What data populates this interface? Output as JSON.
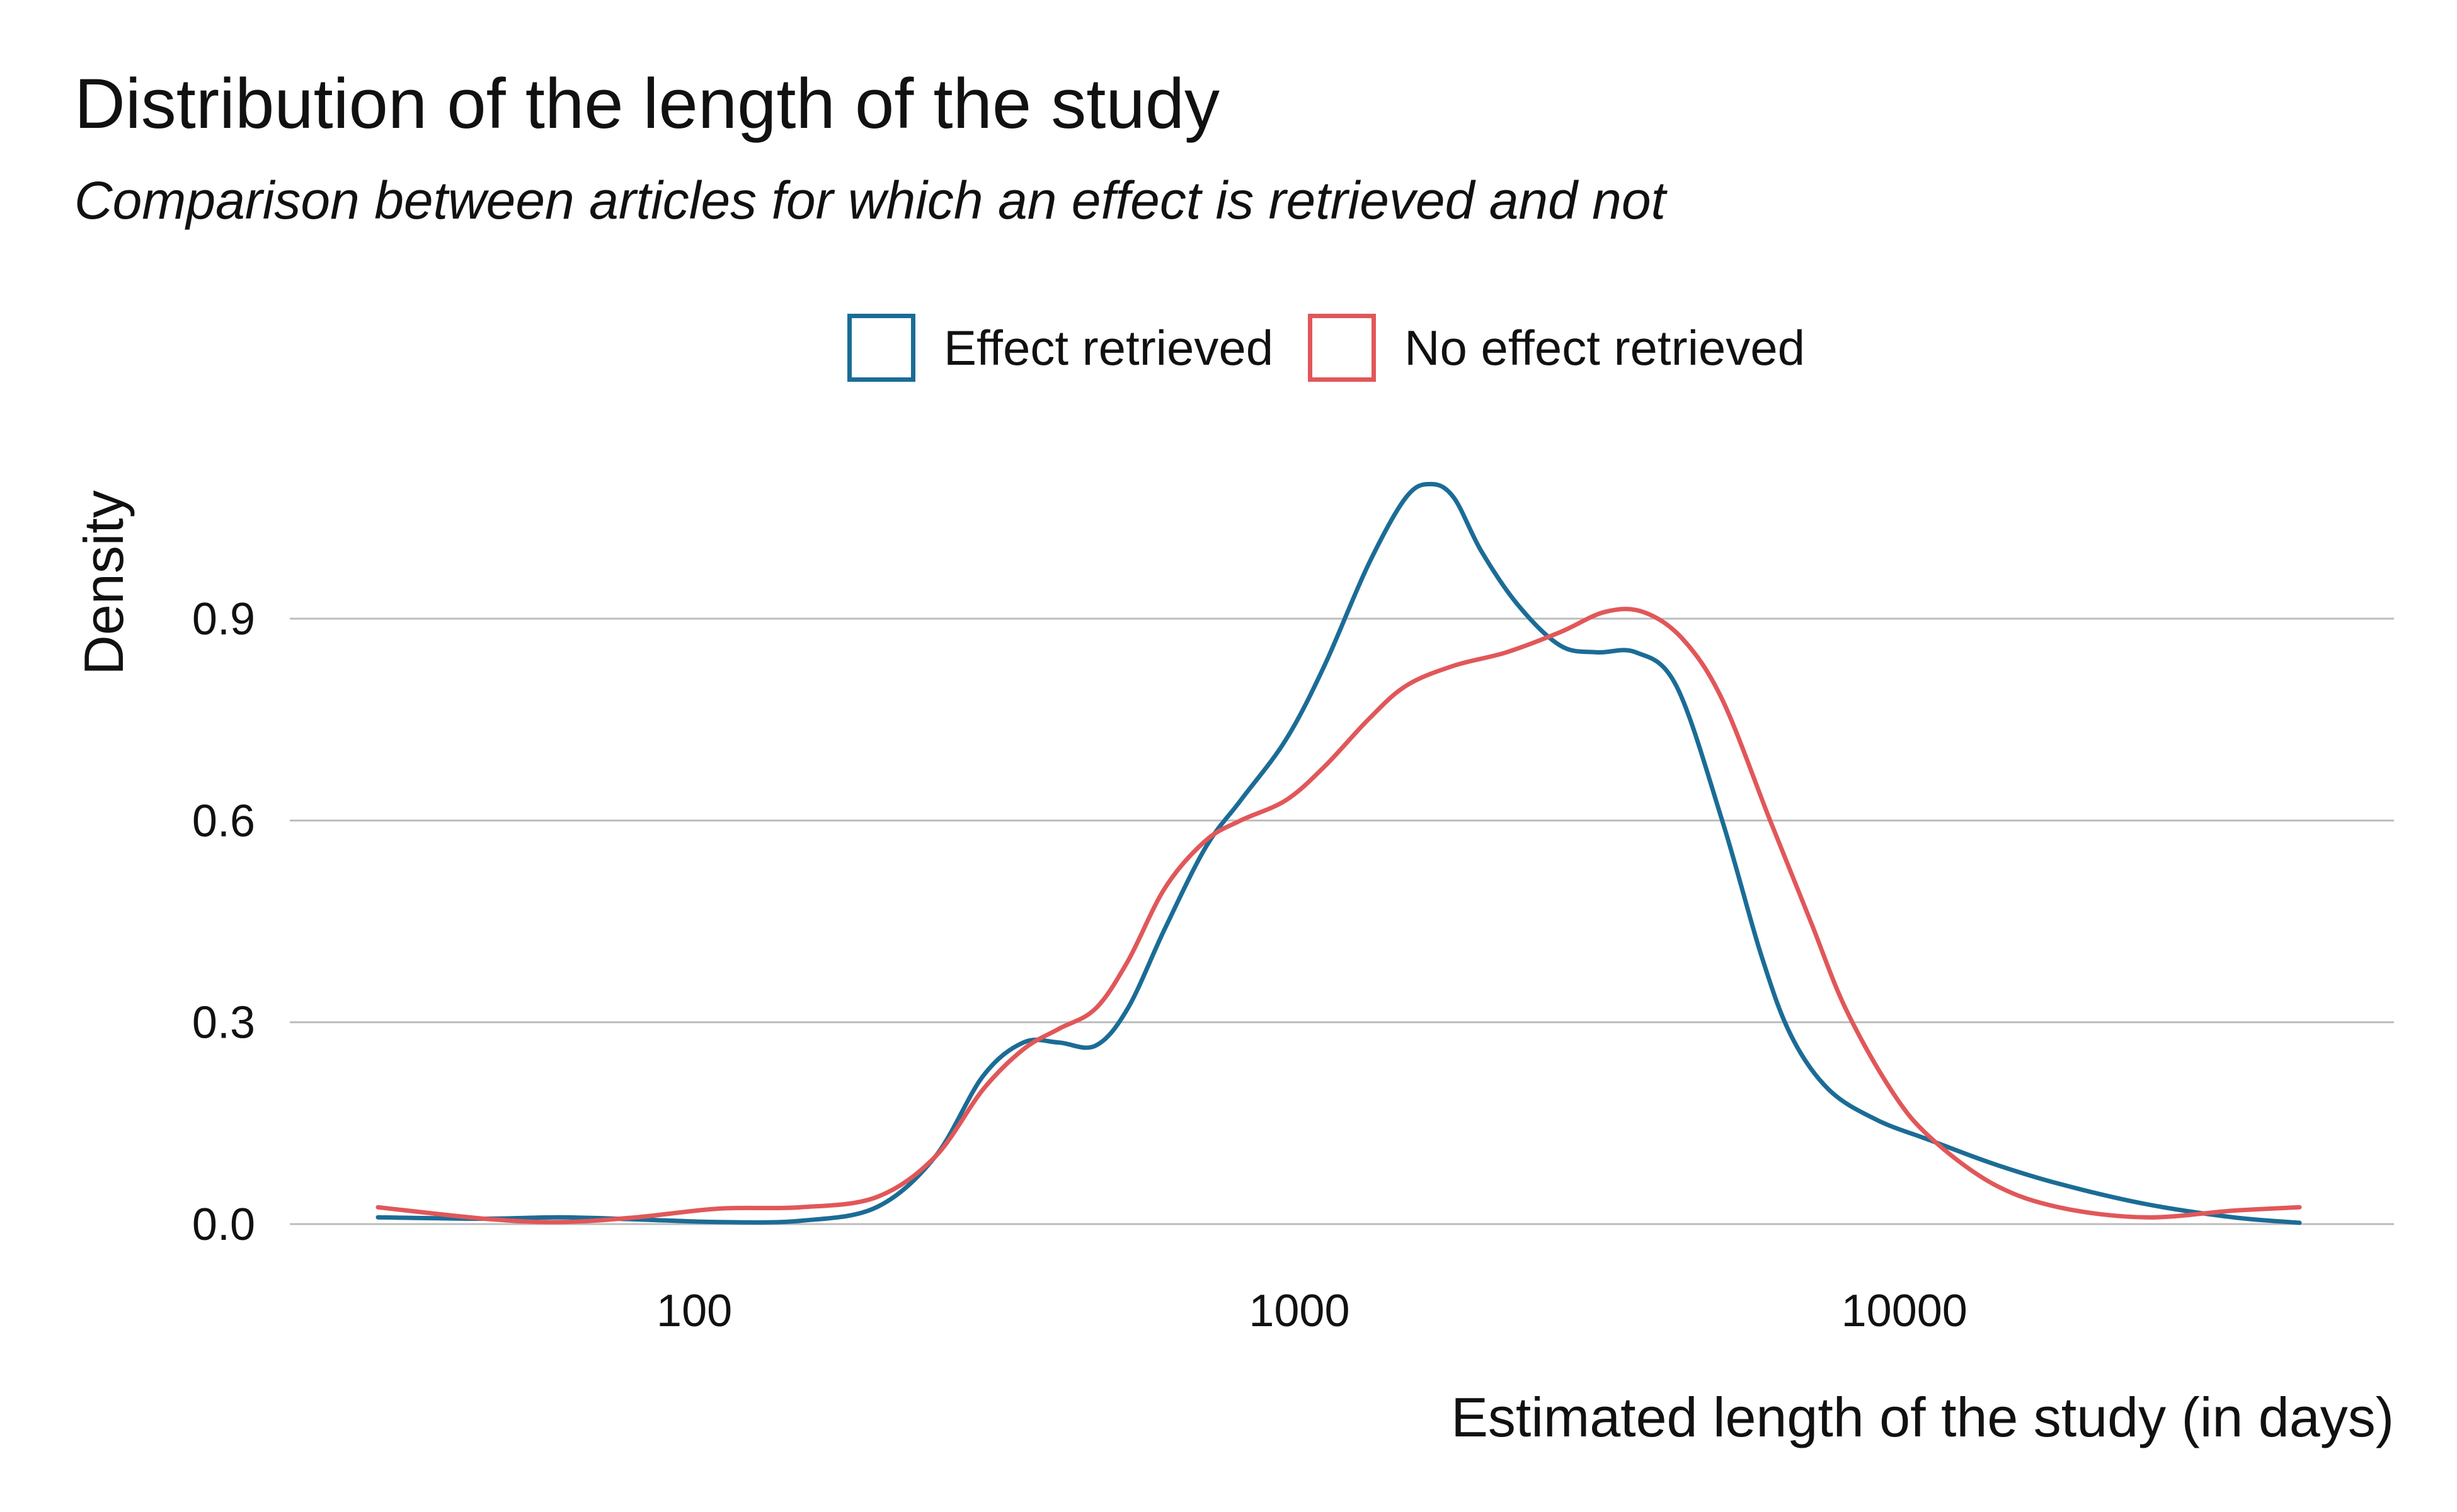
{
  "chart_data": {
    "type": "line",
    "title": "Distribution of the length of the study",
    "subtitle": "Comparison between articles for which an effect is retrieved and not",
    "xlabel": "Estimated length of the study (in days)",
    "ylabel": "Density",
    "x_scale": "log10",
    "xlim": [
      30,
      45000
    ],
    "ylim": [
      0,
      1.12
    ],
    "x_ticks": [
      100,
      1000,
      10000
    ],
    "x_tick_labels": [
      "100",
      "1000",
      "10000"
    ],
    "y_ticks": [
      0,
      0.3,
      0.6,
      0.9
    ],
    "y_tick_labels": [
      "0.0",
      "0.3",
      "0.6",
      "0.9"
    ],
    "grid": "horizontal major",
    "legend_position": "top",
    "series": [
      {
        "name": "Effect retrieved",
        "color": "#1b6c96",
        "x": [
          30,
          45,
          60,
          80,
          110,
          150,
          200,
          250,
          300,
          350,
          400,
          460,
          520,
          600,
          700,
          800,
          950,
          1100,
          1300,
          1500,
          1650,
          1800,
          2000,
          2300,
          2700,
          3100,
          3600,
          4200,
          5000,
          5800,
          6500,
          7500,
          9000,
          11000,
          14000,
          18000,
          25000,
          35000,
          45000
        ],
        "y": [
          0.01,
          0.008,
          0.01,
          0.007,
          0.003,
          0.005,
          0.025,
          0.1,
          0.22,
          0.27,
          0.27,
          0.265,
          0.32,
          0.44,
          0.56,
          0.63,
          0.72,
          0.83,
          0.98,
          1.08,
          1.1,
          1.08,
          1.0,
          0.92,
          0.86,
          0.85,
          0.85,
          0.8,
          0.6,
          0.4,
          0.28,
          0.2,
          0.155,
          0.125,
          0.09,
          0.06,
          0.03,
          0.01,
          0.002
        ]
      },
      {
        "name": "No effect retrieved",
        "color": "#e15759",
        "x": [
          30,
          45,
          60,
          80,
          110,
          150,
          200,
          250,
          300,
          350,
          400,
          460,
          520,
          600,
          700,
          800,
          950,
          1100,
          1300,
          1500,
          1800,
          2200,
          2700,
          3200,
          3700,
          4300,
          5000,
          6000,
          7000,
          8000,
          9500,
          11000,
          14000,
          18000,
          25000,
          35000,
          45000
        ],
        "y": [
          0.025,
          0.008,
          0.003,
          0.01,
          0.023,
          0.025,
          0.04,
          0.1,
          0.2,
          0.26,
          0.29,
          0.32,
          0.39,
          0.5,
          0.57,
          0.6,
          0.63,
          0.68,
          0.75,
          0.8,
          0.83,
          0.85,
          0.88,
          0.91,
          0.91,
          0.87,
          0.78,
          0.6,
          0.45,
          0.32,
          0.2,
          0.13,
          0.06,
          0.025,
          0.01,
          0.02,
          0.025
        ]
      }
    ]
  }
}
